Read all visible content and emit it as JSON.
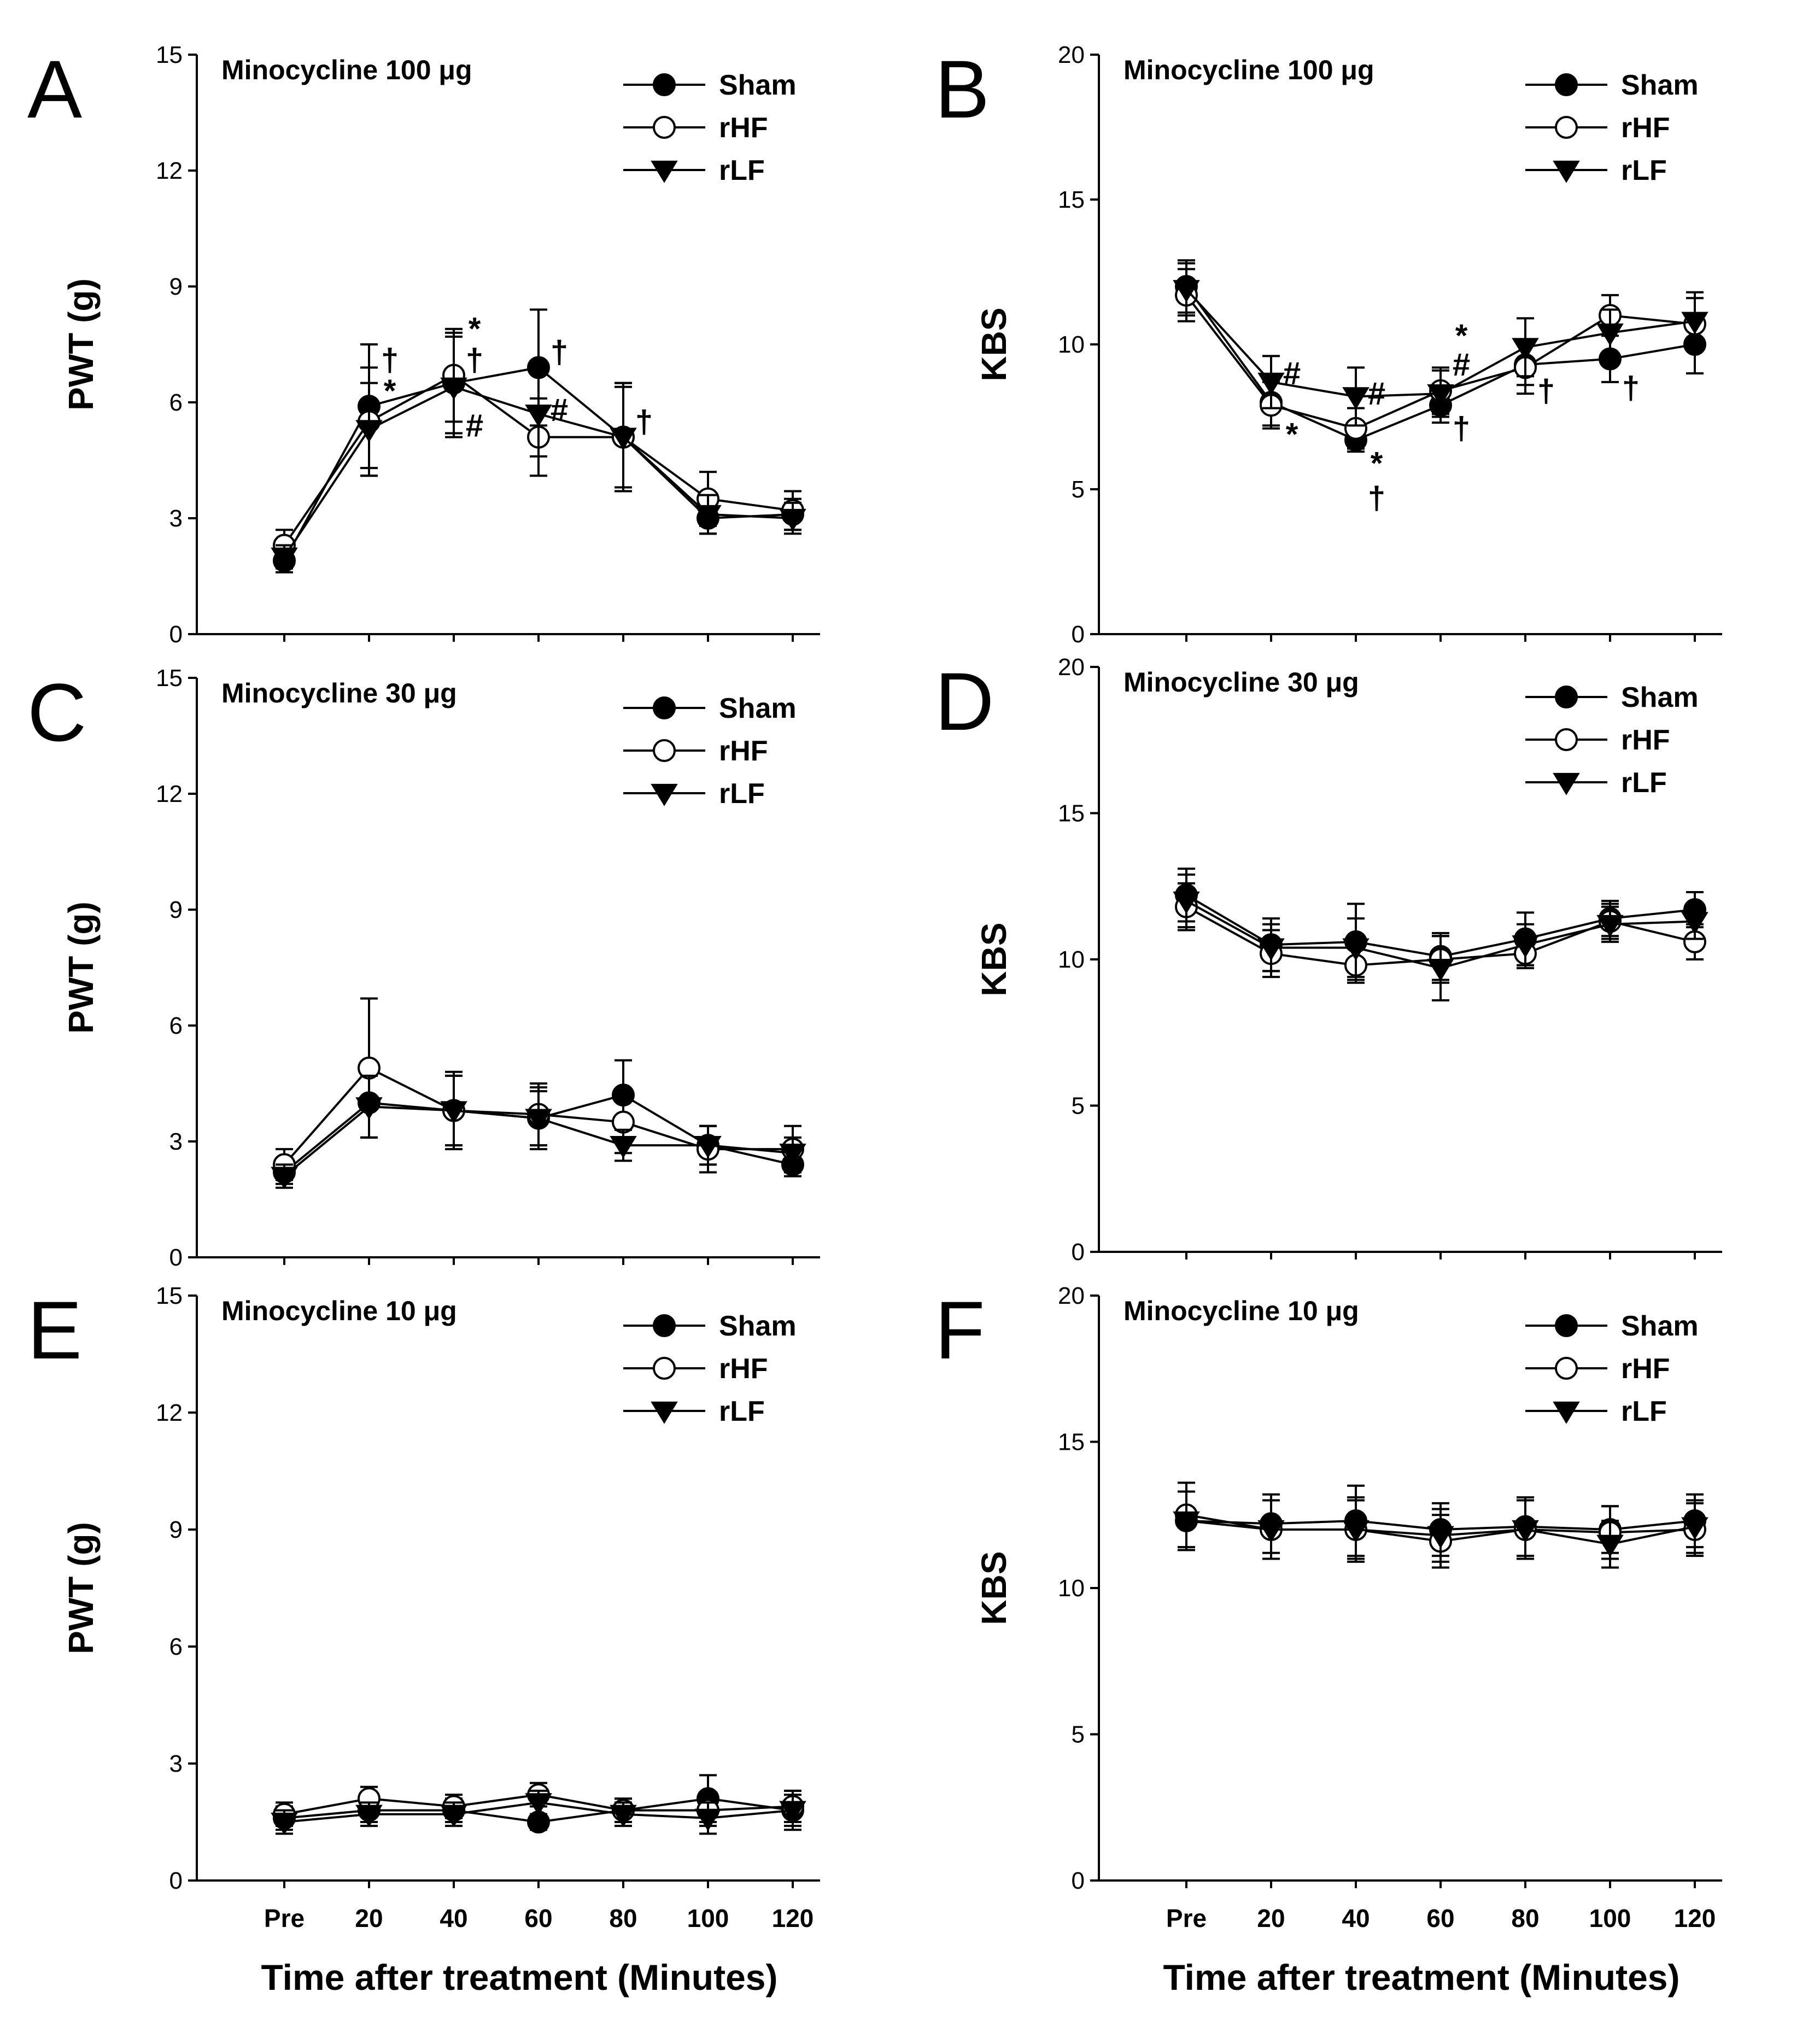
{
  "figure": {
    "x_axis_title": "Time after treatment (Minutes)"
  },
  "chart_data": [
    {
      "panel": "A",
      "type": "line",
      "title": "Minocycline 100 μg",
      "xlabel": "Time after treatment (Minutes)",
      "ylabel": "PWT (g)",
      "categories": [
        "Pre",
        "20",
        "40",
        "60",
        "80",
        "100",
        "120"
      ],
      "ylim": [
        0,
        15
      ],
      "yticks": [
        0,
        3,
        6,
        9,
        12,
        15
      ],
      "legend_position": "top-right",
      "series": [
        {
          "name": "Sham",
          "marker": "filled-circle",
          "values": [
            1.9,
            5.9,
            6.5,
            6.9,
            5.1,
            3.0,
            3.1
          ],
          "errors": [
            0.3,
            1.6,
            1.3,
            1.5,
            1.4,
            0.4,
            0.4
          ]
        },
        {
          "name": "rHF",
          "marker": "open-circle",
          "values": [
            2.3,
            5.5,
            6.7,
            5.1,
            5.1,
            3.5,
            3.2
          ],
          "errors": [
            0.4,
            1.4,
            1.2,
            1.0,
            1.3,
            0.7,
            0.5
          ]
        },
        {
          "name": "rLF",
          "marker": "filled-triangle-down",
          "values": [
            2.0,
            5.3,
            6.4,
            5.7,
            5.1,
            3.1,
            3.0
          ],
          "errors": [
            0.3,
            1.2,
            1.3,
            1.1,
            1.4,
            0.5,
            0.4
          ]
        }
      ],
      "annotations": [
        {
          "x": "20",
          "y": 7.1,
          "text": "†"
        },
        {
          "x": "20",
          "y": 6.3,
          "text": "*"
        },
        {
          "x": "40",
          "y": 7.9,
          "text": "*"
        },
        {
          "x": "40",
          "y": 7.1,
          "text": "†"
        },
        {
          "x": "40",
          "y": 5.4,
          "text": "#"
        },
        {
          "x": "60",
          "y": 7.3,
          "text": "†"
        },
        {
          "x": "60",
          "y": 5.8,
          "text": "#"
        },
        {
          "x": "80",
          "y": 5.5,
          "text": "†"
        }
      ]
    },
    {
      "panel": "B",
      "type": "line",
      "title": "Minocycline 100 μg",
      "xlabel": "Time after treatment (Minutes)",
      "ylabel": "KBS",
      "categories": [
        "Pre",
        "20",
        "40",
        "60",
        "80",
        "100",
        "120"
      ],
      "ylim": [
        0,
        20
      ],
      "yticks": [
        0,
        5,
        10,
        15,
        20
      ],
      "legend_position": "top-right",
      "series": [
        {
          "name": "Sham",
          "marker": "filled-circle",
          "values": [
            12.0,
            8.0,
            6.7,
            7.9,
            9.3,
            9.5,
            10.0
          ],
          "errors": [
            0.9,
            0.8,
            0.4,
            0.6,
            0.7,
            0.8,
            1.0
          ]
        },
        {
          "name": "rHF",
          "marker": "open-circle",
          "values": [
            11.7,
            7.9,
            7.1,
            8.4,
            9.2,
            11.0,
            10.7
          ],
          "errors": [
            0.9,
            0.8,
            0.7,
            0.8,
            0.9,
            0.7,
            0.9
          ]
        },
        {
          "name": "rLF",
          "marker": "filled-triangle-down",
          "values": [
            11.9,
            8.7,
            8.2,
            8.3,
            9.9,
            10.4,
            10.8
          ],
          "errors": [
            0.9,
            0.9,
            1.0,
            0.8,
            1.0,
            0.8,
            1.0
          ]
        }
      ],
      "annotations": [
        {
          "x": "20",
          "y": 9.0,
          "text": "#"
        },
        {
          "x": "20",
          "y": 6.9,
          "text": "*"
        },
        {
          "x": "40",
          "y": 8.3,
          "text": "#"
        },
        {
          "x": "40",
          "y": 5.9,
          "text": "*"
        },
        {
          "x": "40",
          "y": 4.7,
          "text": "†"
        },
        {
          "x": "60",
          "y": 10.3,
          "text": "*"
        },
        {
          "x": "60",
          "y": 9.3,
          "text": "#"
        },
        {
          "x": "60",
          "y": 7.1,
          "text": "†"
        },
        {
          "x": "80",
          "y": 8.4,
          "text": "†"
        },
        {
          "x": "100",
          "y": 8.5,
          "text": "†"
        }
      ]
    },
    {
      "panel": "C",
      "type": "line",
      "title": "Minocycline 30 μg",
      "xlabel": "Time after treatment (Minutes)",
      "ylabel": "PWT (g)",
      "categories": [
        "Pre",
        "20",
        "40",
        "60",
        "80",
        "100",
        "120"
      ],
      "ylim": [
        0,
        15
      ],
      "yticks": [
        0,
        3,
        6,
        9,
        12,
        15
      ],
      "legend_position": "top-right",
      "series": [
        {
          "name": "Sham",
          "marker": "filled-circle",
          "values": [
            2.2,
            4.0,
            3.8,
            3.6,
            4.2,
            2.9,
            2.4
          ],
          "errors": [
            0.3,
            0.9,
            1.0,
            0.8,
            0.9,
            0.5,
            0.3
          ]
        },
        {
          "name": "rHF",
          "marker": "open-circle",
          "values": [
            2.4,
            4.9,
            3.8,
            3.7,
            3.5,
            2.8,
            2.8
          ],
          "errors": [
            0.4,
            1.8,
            0.9,
            0.8,
            0.8,
            0.6,
            0.6
          ]
        },
        {
          "name": "rLF",
          "marker": "filled-triangle-down",
          "values": [
            2.1,
            3.9,
            3.8,
            3.6,
            2.9,
            2.9,
            2.7
          ],
          "errors": [
            0.3,
            0.8,
            0.9,
            0.7,
            0.4,
            0.5,
            0.4
          ]
        }
      ],
      "annotations": []
    },
    {
      "panel": "D",
      "type": "line",
      "title": "Minocycline 30 μg",
      "xlabel": "Time after treatment (Minutes)",
      "ylabel": "KBS",
      "categories": [
        "Pre",
        "20",
        "40",
        "60",
        "80",
        "100",
        "120"
      ],
      "ylim": [
        0,
        20
      ],
      "yticks": [
        0,
        5,
        10,
        15,
        20
      ],
      "legend_position": "top-right",
      "series": [
        {
          "name": "Sham",
          "marker": "filled-circle",
          "values": [
            12.2,
            10.5,
            10.6,
            10.1,
            10.7,
            11.4,
            11.7
          ],
          "errors": [
            0.9,
            0.9,
            1.3,
            0.8,
            0.9,
            0.6,
            0.6
          ]
        },
        {
          "name": "rHF",
          "marker": "open-circle",
          "values": [
            11.8,
            10.2,
            9.8,
            10.0,
            10.2,
            11.3,
            10.6
          ],
          "errors": [
            0.8,
            0.8,
            0.6,
            0.8,
            0.5,
            0.6,
            0.6
          ]
        },
        {
          "name": "rLF",
          "marker": "filled-triangle-down",
          "values": [
            12.0,
            10.4,
            10.4,
            9.7,
            10.5,
            11.2,
            11.3
          ],
          "errors": [
            0.9,
            0.8,
            1.0,
            1.1,
            0.7,
            0.6,
            0.6
          ]
        }
      ],
      "annotations": []
    },
    {
      "panel": "E",
      "type": "line",
      "title": "Minocycline 10 μg",
      "xlabel": "Time after treatment (Minutes)",
      "ylabel": "PWT (g)",
      "categories": [
        "Pre",
        "20",
        "40",
        "60",
        "80",
        "100",
        "120"
      ],
      "ylim": [
        0,
        15
      ],
      "yticks": [
        0,
        3,
        6,
        9,
        12,
        15
      ],
      "legend_position": "top-right",
      "series": [
        {
          "name": "Sham",
          "marker": "filled-circle",
          "values": [
            1.6,
            1.8,
            1.8,
            1.5,
            1.8,
            2.1,
            1.8
          ],
          "errors": [
            0.3,
            0.3,
            0.3,
            0.2,
            0.3,
            0.6,
            0.5
          ]
        },
        {
          "name": "rHF",
          "marker": "open-circle",
          "values": [
            1.7,
            2.1,
            1.9,
            2.2,
            1.8,
            1.8,
            1.9
          ],
          "errors": [
            0.3,
            0.3,
            0.3,
            0.3,
            0.3,
            0.4,
            0.4
          ]
        },
        {
          "name": "rLF",
          "marker": "filled-triangle-down",
          "values": [
            1.5,
            1.7,
            1.7,
            2.0,
            1.7,
            1.6,
            1.8
          ],
          "errors": [
            0.3,
            0.3,
            0.3,
            0.3,
            0.3,
            0.4,
            0.4
          ]
        }
      ],
      "annotations": []
    },
    {
      "panel": "F",
      "type": "line",
      "title": "Minocycline 10 μg",
      "xlabel": "Time after treatment (Minutes)",
      "ylabel": "KBS",
      "categories": [
        "Pre",
        "20",
        "40",
        "60",
        "80",
        "100",
        "120"
      ],
      "ylim": [
        0,
        20
      ],
      "yticks": [
        0,
        5,
        10,
        15,
        20
      ],
      "legend_position": "top-right",
      "series": [
        {
          "name": "Sham",
          "marker": "filled-circle",
          "values": [
            12.3,
            12.2,
            12.3,
            12.0,
            12.1,
            12.0,
            12.3
          ],
          "errors": [
            1.0,
            1.0,
            1.2,
            0.9,
            1.0,
            0.8,
            0.9
          ]
        },
        {
          "name": "rHF",
          "marker": "open-circle",
          "values": [
            12.5,
            12.0,
            12.0,
            11.6,
            12.0,
            11.9,
            12.0
          ],
          "errors": [
            1.1,
            1.0,
            1.1,
            0.9,
            1.0,
            0.9,
            0.9
          ]
        },
        {
          "name": "rLF",
          "marker": "filled-triangle-down",
          "values": [
            12.3,
            12.0,
            12.0,
            11.8,
            12.0,
            11.5,
            12.1
          ],
          "errors": [
            1.0,
            1.0,
            1.0,
            0.9,
            1.0,
            0.8,
            0.9
          ]
        }
      ],
      "annotations": []
    }
  ]
}
